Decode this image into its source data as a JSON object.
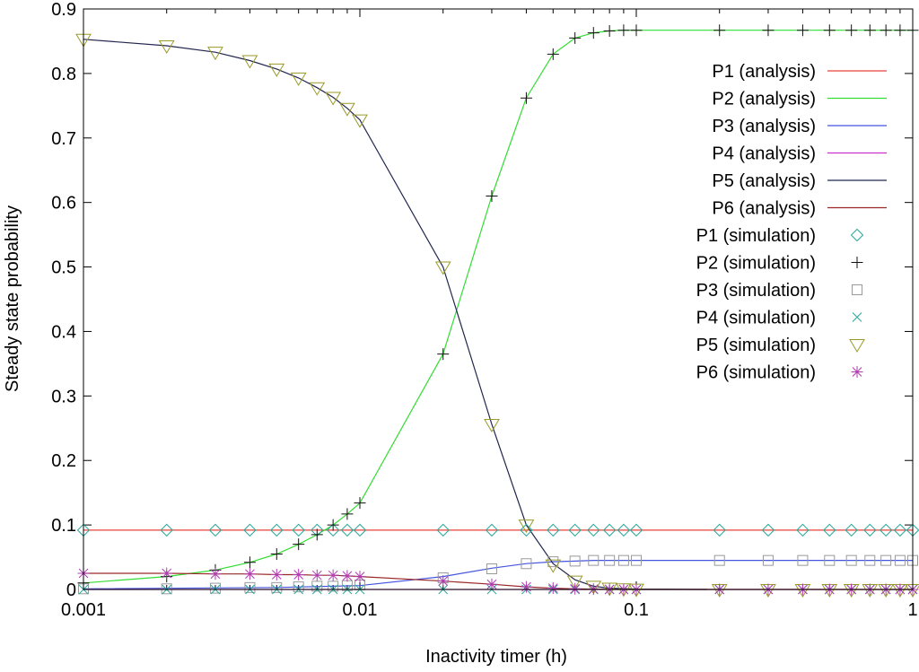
{
  "chart_data": {
    "type": "line",
    "title": "",
    "xlabel": "Inactivity timer (h)",
    "ylabel": "Steady state probability",
    "x_scale": "log",
    "xlim": [
      0.001,
      1
    ],
    "ylim": [
      0,
      0.9
    ],
    "x_ticks": [
      0.001,
      0.01,
      0.1,
      1
    ],
    "x_tick_labels": [
      "0.001",
      "0.01",
      "0.1",
      "1"
    ],
    "y_ticks": [
      0,
      0.1,
      0.2,
      0.3,
      0.4,
      0.5,
      0.6,
      0.7,
      0.8,
      0.9
    ],
    "y_tick_labels": [
      "0",
      "0.1",
      "0.2",
      "0.3",
      "0.4",
      "0.5",
      "0.6",
      "0.7",
      "0.8",
      "0.9"
    ],
    "grid": false,
    "legend_position": "top-right",
    "analysis_series": [
      {
        "name": "P1 (analysis)",
        "color": "#e8413b",
        "x": [
          0.001,
          1
        ],
        "y": [
          0.092,
          0.092
        ]
      },
      {
        "name": "P2 (analysis)",
        "color": "#33dd33",
        "x": [
          0.001,
          0.002,
          0.003,
          0.004,
          0.005,
          0.006,
          0.007,
          0.008,
          0.009,
          0.01,
          0.02,
          0.03,
          0.04,
          0.05,
          0.06,
          0.07,
          0.08,
          0.09,
          0.1,
          0.2,
          1
        ],
        "y": [
          0.01,
          0.02,
          0.03,
          0.042,
          0.055,
          0.07,
          0.085,
          0.1,
          0.117,
          0.134,
          0.365,
          0.61,
          0.762,
          0.83,
          0.855,
          0.863,
          0.866,
          0.867,
          0.867,
          0.867,
          0.867
        ]
      },
      {
        "name": "P3 (analysis)",
        "color": "#4455dd",
        "x": [
          0.001,
          0.005,
          0.01,
          0.02,
          0.03,
          0.04,
          0.05,
          0.06,
          0.07,
          0.1,
          1
        ],
        "y": [
          0.001,
          0.003,
          0.006,
          0.02,
          0.033,
          0.04,
          0.043,
          0.044,
          0.045,
          0.045,
          0.045
        ]
      },
      {
        "name": "P4 (analysis)",
        "color": "#cc33cc",
        "x": [
          0.001,
          1
        ],
        "y": [
          0.0,
          0.0
        ]
      },
      {
        "name": "P5 (analysis)",
        "color": "#22264d",
        "x": [
          0.001,
          0.002,
          0.003,
          0.004,
          0.005,
          0.006,
          0.007,
          0.008,
          0.009,
          0.01,
          0.02,
          0.03,
          0.04,
          0.05,
          0.06,
          0.07,
          0.08,
          0.1,
          0.18
        ],
        "y": [
          0.853,
          0.843,
          0.833,
          0.82,
          0.807,
          0.793,
          0.778,
          0.763,
          0.746,
          0.728,
          0.5,
          0.256,
          0.1,
          0.04,
          0.015,
          0.005,
          0.002,
          0.0005,
          0.0
        ]
      },
      {
        "name": "P6 (analysis)",
        "color": "#9b2727",
        "x": [
          0.001,
          0.002,
          0.003,
          0.004,
          0.005,
          0.006,
          0.007,
          0.008,
          0.009,
          0.01,
          0.02,
          0.03,
          0.04,
          0.05,
          0.06,
          0.07,
          0.08,
          0.1,
          0.2,
          1
        ],
        "y": [
          0.025,
          0.025,
          0.024,
          0.024,
          0.023,
          0.023,
          0.022,
          0.022,
          0.021,
          0.02,
          0.013,
          0.008,
          0.004,
          0.002,
          0.001,
          0.0005,
          0.0002,
          0.0,
          0.0,
          0.0
        ]
      }
    ],
    "simulation_x": [
      0.001,
      0.002,
      0.003,
      0.004,
      0.005,
      0.006,
      0.007,
      0.008,
      0.009,
      0.01,
      0.02,
      0.03,
      0.04,
      0.05,
      0.06,
      0.07,
      0.08,
      0.09,
      0.1,
      0.2,
      0.3,
      0.4,
      0.5,
      0.6,
      0.7,
      0.8,
      0.9,
      1
    ],
    "simulation_series": [
      {
        "name": "P1 (simulation)",
        "color": "#2aa89a",
        "marker": "diamond",
        "y": [
          0.092,
          0.092,
          0.092,
          0.092,
          0.092,
          0.092,
          0.092,
          0.092,
          0.092,
          0.092,
          0.092,
          0.092,
          0.092,
          0.092,
          0.092,
          0.092,
          0.092,
          0.092,
          0.092,
          0.092,
          0.092,
          0.092,
          0.092,
          0.092,
          0.092,
          0.092,
          0.092,
          0.092
        ]
      },
      {
        "name": "P2 (simulation)",
        "color": "#111111",
        "marker": "plus",
        "y": [
          0.01,
          0.02,
          0.03,
          0.042,
          0.055,
          0.07,
          0.085,
          0.1,
          0.117,
          0.134,
          0.365,
          0.61,
          0.762,
          0.83,
          0.855,
          0.863,
          0.866,
          0.867,
          0.867,
          0.867,
          0.867,
          0.867,
          0.867,
          0.867,
          0.867,
          0.867,
          0.867,
          0.867
        ]
      },
      {
        "name": "P3 (simulation)",
        "color": "#999999",
        "marker": "square",
        "y": [
          0.001,
          0.001,
          0.002,
          0.003,
          0.003,
          0.004,
          0.005,
          0.005,
          0.006,
          0.007,
          0.018,
          0.032,
          0.04,
          0.043,
          0.044,
          0.045,
          0.045,
          0.045,
          0.045,
          0.045,
          0.045,
          0.045,
          0.045,
          0.045,
          0.045,
          0.045,
          0.045,
          0.045
        ]
      },
      {
        "name": "P4 (simulation)",
        "color": "#2aa89a",
        "marker": "x",
        "y": [
          0.0,
          0.0,
          0.0,
          0.0,
          0.0,
          0.0,
          0.0,
          0.0,
          0.0,
          0.0,
          0.0,
          0.0,
          0.0,
          0.0,
          0.0,
          0.0,
          0.0,
          0.0,
          0.0,
          0.0,
          0.0,
          0.0,
          0.0,
          0.0,
          0.0,
          0.0,
          0.0,
          0.0
        ]
      },
      {
        "name": "P5 (simulation)",
        "color": "#9a9a2a",
        "marker": "triangle-down",
        "y": [
          0.853,
          0.843,
          0.833,
          0.82,
          0.807,
          0.793,
          0.778,
          0.763,
          0.746,
          0.728,
          0.5,
          0.256,
          0.1,
          0.038,
          0.013,
          0.005,
          0.002,
          0.001,
          0.0005,
          0.0,
          0.0,
          0.0,
          0.0,
          0.0,
          0.0,
          0.0,
          0.0,
          0.0
        ]
      },
      {
        "name": "P6 (simulation)",
        "color": "#b03cb0",
        "marker": "asterisk",
        "y": [
          0.025,
          0.025,
          0.024,
          0.024,
          0.023,
          0.023,
          0.022,
          0.022,
          0.021,
          0.02,
          0.013,
          0.008,
          0.004,
          0.002,
          0.001,
          0.0005,
          0.0002,
          0.0,
          0.0,
          0.0,
          0.0,
          0.0,
          0.0,
          0.0,
          0.0,
          0.0,
          0.0,
          0.0
        ]
      }
    ]
  }
}
